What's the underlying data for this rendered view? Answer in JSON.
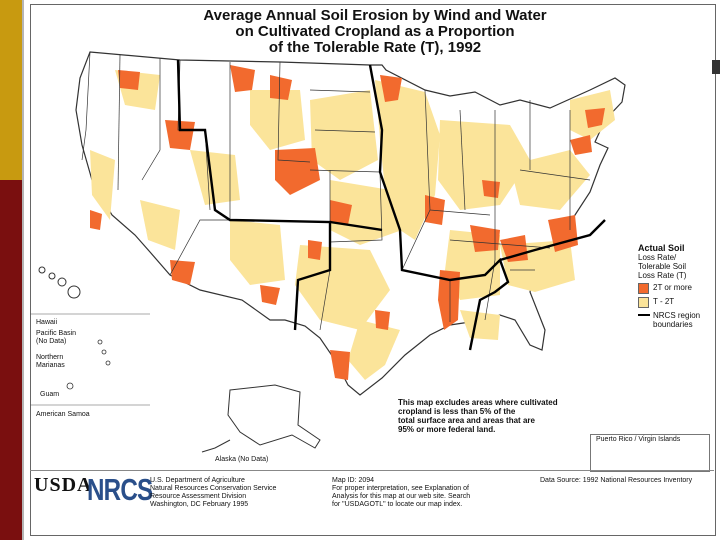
{
  "title": {
    "line1": "Average Annual Soil Erosion by Wind and Water",
    "line2": "on Cultivated Cropland as a Proportion",
    "line3": "of the Tolerable Rate (T), 1992"
  },
  "colors": {
    "high": "#F26A2E",
    "moderate": "#FBE49A",
    "state_border": "#333333",
    "region_border": "#000000",
    "side_gold": "#C89A10",
    "side_red": "#7A0F0F"
  },
  "legend": {
    "title_line1": "Actual Soil",
    "title_line2": "Loss Rate/",
    "title_line3": "Tolerable Soil",
    "title_line4": "Loss Rate (T)",
    "item_high": "2T or more",
    "item_moderate": "T - 2T",
    "item_boundary_line1": "NRCS region",
    "item_boundary_line2": "boundaries"
  },
  "insets": {
    "hawaii": "Hawaii",
    "pacific_basin_line1": "Pacific Basin",
    "pacific_basin_line2": "(No Data)",
    "northern_marianas_line1": "Northern",
    "northern_marianas_line2": "Marianas",
    "guam": "Guam",
    "american_samoa": "American Samoa",
    "alaska": "Alaska (No Data)",
    "puerto_rico": "Puerto Rico / Virgin Islands"
  },
  "note": {
    "line1": "This map excludes areas where cultivated",
    "line2": "cropland is less than 5% of the",
    "line3": "total surface area and areas that are",
    "line4": "95% or more federal land."
  },
  "footer": {
    "usda": "USDA",
    "nrcs": "NRCS",
    "agency_line1": "U.S. Department of Agriculture",
    "agency_line2": "Natural Resources Conservation Service",
    "agency_line3": "Resource Assessment Division",
    "agency_line4": "Washington, DC   February 1995",
    "map_id": "Map ID: 2094",
    "interp_line1": "For proper interpretation, see Explanation of",
    "interp_line2": "Analysis for this map at our web site.  Search",
    "interp_line3": "for \"USDAGOTL\" to locate our map index.",
    "source": "Data Source:  1992 National Resources Inventory"
  }
}
